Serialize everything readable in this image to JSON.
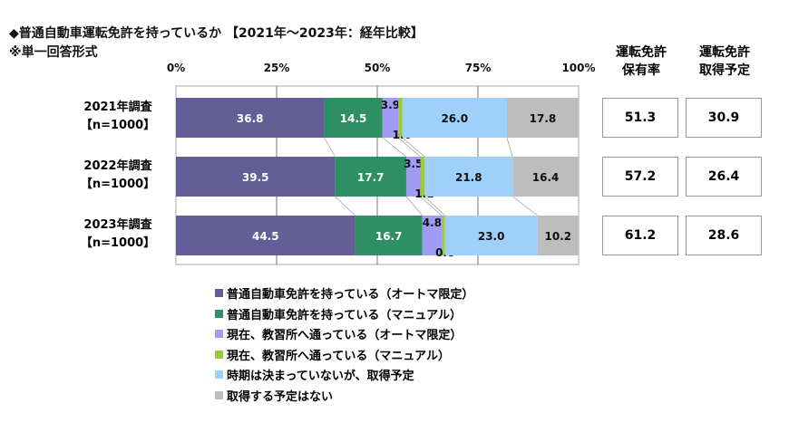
{
  "title": "◆普通自動車運転免許を持っているか 【2021年～2023年：経年比較】",
  "note": "※単一回答形式",
  "side_columns": {
    "headers": [
      [
        "運転免許",
        "保有率"
      ],
      [
        "運転免許",
        "取得予定"
      ]
    ],
    "values": [
      [
        "51.3",
        "30.9"
      ],
      [
        "57.2",
        "26.4"
      ],
      [
        "61.2",
        "28.6"
      ]
    ]
  },
  "chart_data": {
    "type": "bar",
    "orientation": "horizontal",
    "stacked": true,
    "categories": [
      [
        "2021年調査",
        "【n=1000】"
      ],
      [
        "2022年調査",
        "【n=1000】"
      ],
      [
        "2023年調査",
        "【n=1000】"
      ]
    ],
    "xlim": [
      0,
      100
    ],
    "xticks": [
      "0%",
      "25%",
      "50%",
      "75%",
      "100%"
    ],
    "grid": true,
    "legend_position": "bottom",
    "series": [
      {
        "name": "普通自動車免許を持っている（オートマ限定）",
        "color": "#635f96",
        "values": [
          36.8,
          39.5,
          44.5
        ]
      },
      {
        "name": "普通自動車免許を持っている（マニュアル）",
        "color": "#2e8f62",
        "values": [
          14.5,
          17.7,
          16.7
        ]
      },
      {
        "name": "現在、教習所へ通っている（オートマ限定）",
        "color": "#9f9cf2",
        "values": [
          3.9,
          3.5,
          4.8
        ]
      },
      {
        "name": "現在、教習所へ通っている（マニュアル）",
        "color": "#9acd32",
        "values": [
          1.0,
          1.1,
          0.8
        ]
      },
      {
        "name": "時期は決まっていないが、取得予定",
        "color": "#9fd0f9",
        "values": [
          26.0,
          21.8,
          23.0
        ]
      },
      {
        "name": "取得する予定はない",
        "color": "#bdbdbd",
        "values": [
          17.8,
          16.4,
          10.2
        ]
      }
    ]
  }
}
